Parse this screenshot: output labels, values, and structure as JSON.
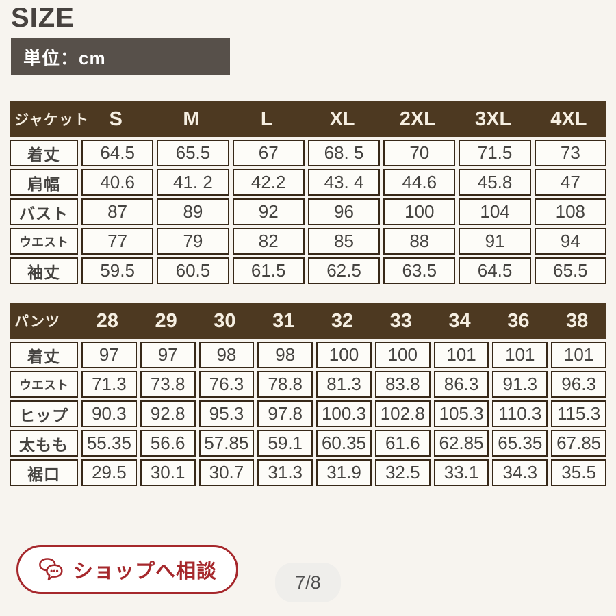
{
  "page": {
    "title": "SIZE",
    "unit_label": "単位：cm"
  },
  "jacket_table": {
    "corner_label": "ジャケット",
    "columns": [
      "S",
      "M",
      "L",
      "XL",
      "2XL",
      "3XL",
      "4XL"
    ],
    "rows": [
      {
        "label": "着丈",
        "values": [
          "64.5",
          "65.5",
          "67",
          "68. 5",
          "70",
          "71.5",
          "73"
        ]
      },
      {
        "label": "肩幅",
        "values": [
          "40.6",
          "41. 2",
          "42.2",
          "43. 4",
          "44.6",
          "45.8",
          "47"
        ]
      },
      {
        "label": "バスト",
        "values": [
          "87",
          "89",
          "92",
          "96",
          "100",
          "104",
          "108"
        ]
      },
      {
        "label": "ウエスト",
        "values": [
          "77",
          "79",
          "82",
          "85",
          "88",
          "91",
          "94"
        ]
      },
      {
        "label": "袖丈",
        "values": [
          "59.5",
          "60.5",
          "61.5",
          "62.5",
          "63.5",
          "64.5",
          "65.5"
        ]
      }
    ]
  },
  "pants_table": {
    "corner_label": "パンツ",
    "columns": [
      "28",
      "29",
      "30",
      "31",
      "32",
      "33",
      "34",
      "36",
      "38"
    ],
    "rows": [
      {
        "label": "着丈",
        "values": [
          "97",
          "97",
          "98",
          "98",
          "100",
          "100",
          "101",
          "101",
          "101"
        ]
      },
      {
        "label": "ウエスト",
        "values": [
          "71.3",
          "73.8",
          "76.3",
          "78.8",
          "81.3",
          "83.8",
          "86.3",
          "91.3",
          "96.3"
        ]
      },
      {
        "label": "ヒップ",
        "values": [
          "90.3",
          "92.8",
          "95.3",
          "97.8",
          "100.3",
          "102.8",
          "105.3",
          "110.3",
          "115.3"
        ]
      },
      {
        "label": "太もも",
        "values": [
          "55.35",
          "56.6",
          "57.85",
          "59.1",
          "60.35",
          "61.6",
          "62.85",
          "65.35",
          "67.85"
        ]
      },
      {
        "label": "裾口",
        "values": [
          "29.5",
          "30.1",
          "30.7",
          "31.3",
          "31.9",
          "32.5",
          "33.1",
          "34.3",
          "35.5"
        ]
      }
    ]
  },
  "footer": {
    "consult_button_label": "ショップへ相談",
    "page_indicator": "7/8"
  },
  "colors": {
    "page_bg": "#f7f4ef",
    "header_brown": "#4d3921",
    "header_text": "#f6efe2",
    "cell_bg": "#fdfcf8",
    "cell_border": "#372818",
    "cell_text": "#454340",
    "unit_bg": "#57504a",
    "accent_red": "#a6282c",
    "pager_bg": "#efeeeb",
    "pager_text": "#4f4f4f"
  }
}
